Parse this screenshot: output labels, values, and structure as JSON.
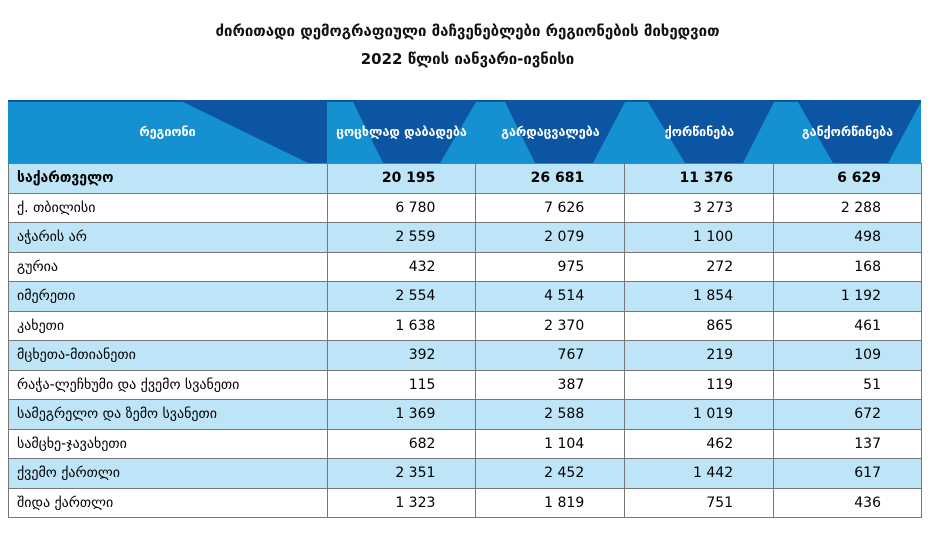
{
  "title": {
    "line1": "ძირითადი დემოგრაფიული მაჩვენებლები რეგიონების მიხედვით",
    "line2": "2022 წლის იანვარი-ივნისი"
  },
  "colors": {
    "header_dark": "#0b55a3",
    "header_light": "#1591d2",
    "row_alt": "#bde4f7"
  },
  "columns": [
    "რეგიონი",
    "ცოცხლად დაბადება",
    "გარდაცვალება",
    "ქორწინება",
    "განქორწინება"
  ],
  "rows": [
    [
      "საქართველო",
      "20 195",
      "26 681",
      "11 376",
      "6 629"
    ],
    [
      "ქ. თბილისი",
      "6 780",
      "7 626",
      "3 273",
      "2 288"
    ],
    [
      "აჭარის არ",
      "2 559",
      "2 079",
      "1 100",
      "498"
    ],
    [
      "გურია",
      "432",
      "975",
      "272",
      "168"
    ],
    [
      "იმერეთი",
      "2 554",
      "4 514",
      "1 854",
      "1 192"
    ],
    [
      "კახეთი",
      "1 638",
      "2 370",
      "865",
      "461"
    ],
    [
      "მცხეთა-მთიანეთი",
      "392",
      "767",
      "219",
      "109"
    ],
    [
      "რაჭა-ლეჩხუმი და ქვემო სვანეთი",
      "115",
      "387",
      "119",
      "51"
    ],
    [
      "სამეგრელო და ზემო სვანეთი",
      "1 369",
      "2 588",
      "1 019",
      "672"
    ],
    [
      "სამცხე-ჯავახეთი",
      "682",
      "1 104",
      "462",
      "137"
    ],
    [
      "ქვემო ქართლი",
      "2 351",
      "2 452",
      "1 442",
      "617"
    ],
    [
      "შიდა ქართლი",
      "1 323",
      "1 819",
      "751",
      "436"
    ]
  ]
}
